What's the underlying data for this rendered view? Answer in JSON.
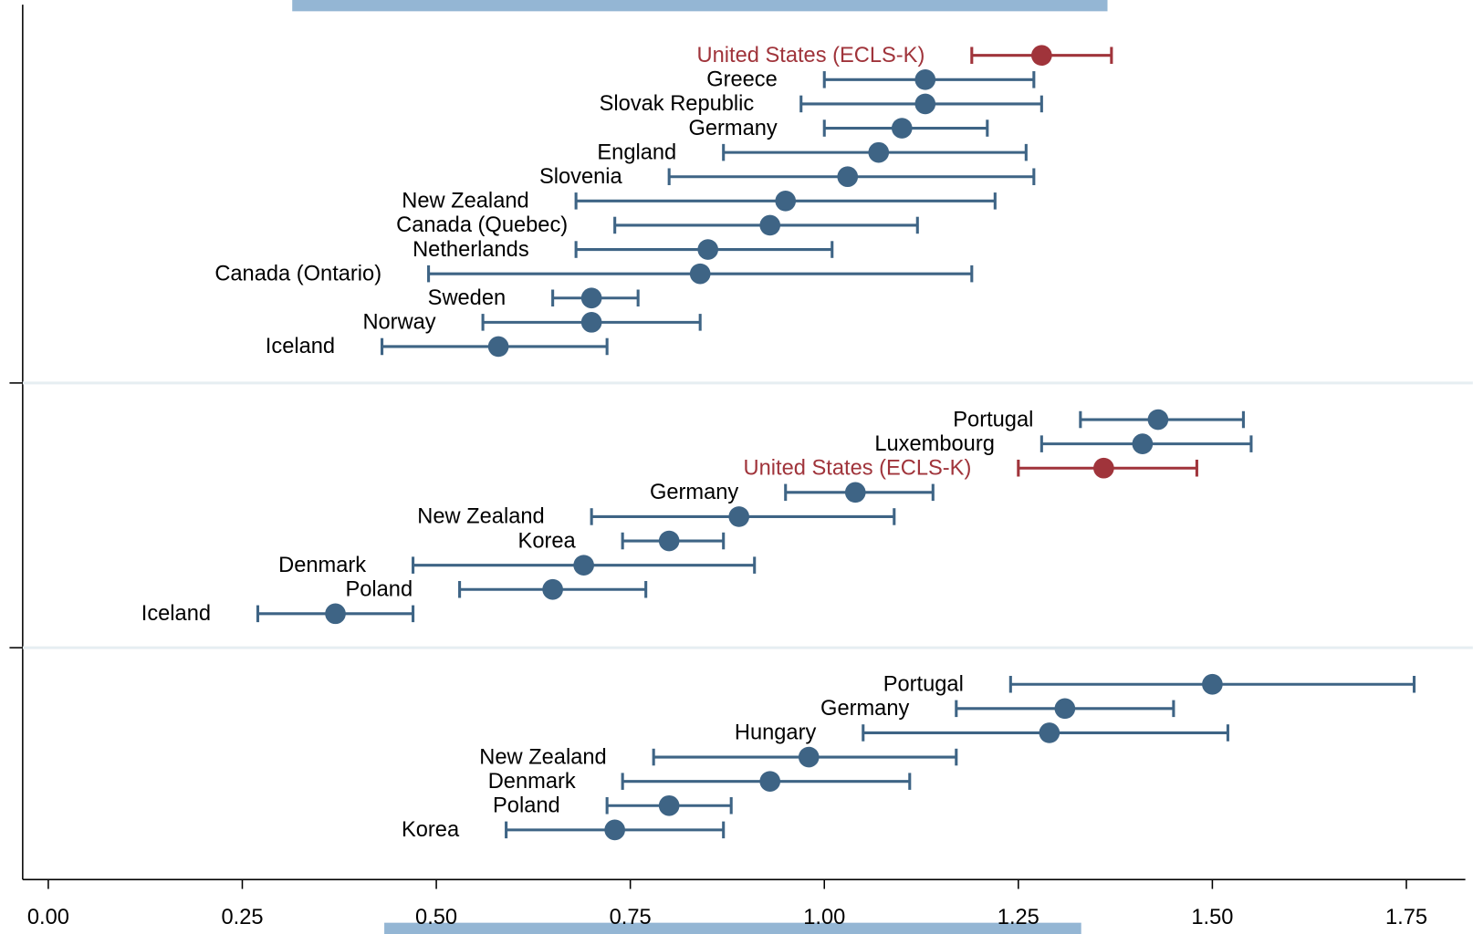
{
  "chart_data": {
    "type": "errorbar",
    "xlim": [
      -0.033,
      1.826
    ],
    "xticks": [
      {
        "value": 0,
        "label": "0.00"
      },
      {
        "value": 0.25,
        "label": "0.25"
      },
      {
        "value": 0.5,
        "label": "0.50"
      },
      {
        "value": 0.75,
        "label": "0.75"
      },
      {
        "value": 1,
        "label": "1.00"
      },
      {
        "value": 1.25,
        "label": "1.25"
      },
      {
        "value": 1.5,
        "label": "1.50"
      },
      {
        "value": 1.75,
        "label": "1.75"
      }
    ],
    "panels": [
      {
        "categories": [
          "United States (ECLS-K)",
          "Greece",
          "Slovak Republic",
          "Germany",
          "England",
          "Slovenia",
          "New Zealand",
          "Canada (Quebec)",
          "Netherlands",
          "Canada (Ontario)",
          "Sweden",
          "Norway",
          "Iceland"
        ],
        "values": [
          1.28,
          1.13,
          1.13,
          1.1,
          1.07,
          1.03,
          0.95,
          0.93,
          0.85,
          0.84,
          0.7,
          0.7,
          0.58
        ],
        "lower": [
          1.19,
          1.0,
          0.97,
          1.0,
          0.87,
          0.8,
          0.68,
          0.73,
          0.68,
          0.49,
          0.65,
          0.56,
          0.43
        ],
        "upper": [
          1.37,
          1.27,
          1.28,
          1.21,
          1.26,
          1.27,
          1.22,
          1.12,
          1.01,
          1.19,
          0.76,
          0.84,
          0.72
        ],
        "colors": [
          "#a0343b",
          "#3e6485",
          "#3e6485",
          "#3e6485",
          "#3e6485",
          "#3e6485",
          "#3e6485",
          "#3e6485",
          "#3e6485",
          "#3e6485",
          "#3e6485",
          "#3e6485",
          "#3e6485"
        ],
        "label_colors": [
          "#a0343b",
          "#000000",
          "#000000",
          "#000000",
          "#000000",
          "#000000",
          "#000000",
          "#000000",
          "#000000",
          "#000000",
          "#000000",
          "#000000",
          "#000000"
        ]
      },
      {
        "categories": [
          "Portugal",
          "Luxembourg",
          "United States (ECLS-K)",
          "Germany",
          "New Zealand",
          "Korea",
          "Denmark",
          "Poland",
          "Iceland"
        ],
        "values": [
          1.43,
          1.41,
          1.36,
          1.04,
          0.89,
          0.8,
          0.69,
          0.65,
          0.37
        ],
        "lower": [
          1.33,
          1.28,
          1.25,
          0.95,
          0.7,
          0.74,
          0.47,
          0.53,
          0.27
        ],
        "upper": [
          1.54,
          1.55,
          1.48,
          1.14,
          1.09,
          0.87,
          0.91,
          0.77,
          0.47
        ],
        "colors": [
          "#3e6485",
          "#3e6485",
          "#a0343b",
          "#3e6485",
          "#3e6485",
          "#3e6485",
          "#3e6485",
          "#3e6485",
          "#3e6485"
        ],
        "label_colors": [
          "#000000",
          "#000000",
          "#a0343b",
          "#000000",
          "#000000",
          "#000000",
          "#000000",
          "#000000",
          "#000000"
        ]
      },
      {
        "categories": [
          "Portugal",
          "Germany",
          "Hungary",
          "New Zealand",
          "Denmark",
          "Poland",
          "Korea"
        ],
        "values": [
          1.5,
          1.31,
          1.29,
          0.98,
          0.93,
          0.8,
          0.73
        ],
        "lower": [
          1.24,
          1.17,
          1.05,
          0.78,
          0.74,
          0.72,
          0.59
        ],
        "upper": [
          1.76,
          1.45,
          1.52,
          1.17,
          1.11,
          0.88,
          0.87
        ],
        "colors": [
          "#3e6485",
          "#3e6485",
          "#3e6485",
          "#3e6485",
          "#3e6485",
          "#3e6485",
          "#3e6485"
        ],
        "label_colors": [
          "#000000",
          "#000000",
          "#000000",
          "#000000",
          "#000000",
          "#000000",
          "#000000"
        ]
      }
    ]
  }
}
